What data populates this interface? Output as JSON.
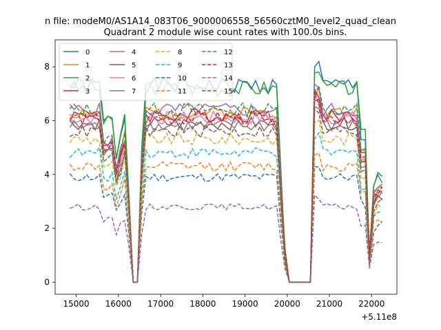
{
  "chart_data": {
    "type": "line",
    "suptitle": "n file: modeM0/AS1A14_083T06_9000006558_56560cztM0_level2_quad_clean",
    "title": "Quadrant 2 module wise count rates with 100.0s bins.",
    "xlabel": "",
    "ylabel": "",
    "offset_label": "+5.11e8",
    "xlim": [
      14500,
      22600
    ],
    "ylim": [
      -0.45,
      9.0
    ],
    "xticks": [
      15000,
      16000,
      17000,
      18000,
      19000,
      20000,
      21000,
      22000
    ],
    "yticks": [
      0,
      2,
      4,
      6,
      8
    ],
    "xtick_labels": [
      "15000",
      "16000",
      "17000",
      "18000",
      "19000",
      "20000",
      "21000",
      "22000"
    ],
    "ytick_labels": [
      "0",
      "2",
      "4",
      "6",
      "8"
    ],
    "legend_position": "upper-left",
    "series": [
      {
        "name": "0",
        "color": "#1f77b4",
        "dash": "solid",
        "level": 7.3,
        "seed": 1
      },
      {
        "name": "1",
        "color": "#ff7f0e",
        "dash": "solid",
        "level": 6.3,
        "seed": 2
      },
      {
        "name": "2",
        "color": "#2ca02c",
        "dash": "solid",
        "level": 7.2,
        "seed": 3
      },
      {
        "name": "3",
        "color": "#d62728",
        "dash": "solid",
        "level": 6.2,
        "seed": 4
      },
      {
        "name": "4",
        "color": "#9467bd",
        "dash": "solid",
        "level": 6.4,
        "seed": 5
      },
      {
        "name": "5",
        "color": "#8c564b",
        "dash": "solid",
        "level": 5.9,
        "seed": 6
      },
      {
        "name": "6",
        "color": "#e377c2",
        "dash": "solid",
        "level": 6.1,
        "seed": 7
      },
      {
        "name": "7",
        "color": "#7f7f7f",
        "dash": "solid",
        "level": 5.8,
        "seed": 8
      },
      {
        "name": "8",
        "color": "#bcbd22",
        "dash": "dashed",
        "level": 5.3,
        "seed": 9
      },
      {
        "name": "9",
        "color": "#17becf",
        "dash": "dashed",
        "level": 4.8,
        "seed": 10
      },
      {
        "name": "10",
        "color": "#1f77b4",
        "dash": "dashed",
        "level": 3.9,
        "seed": 11
      },
      {
        "name": "11",
        "color": "#ff7f0e",
        "dash": "dashed",
        "level": 4.3,
        "seed": 12
      },
      {
        "name": "12",
        "color": "#2ca02c",
        "dash": "dashed",
        "level": 6.4,
        "seed": 13
      },
      {
        "name": "13",
        "color": "#d62728",
        "dash": "dashed",
        "level": 6.1,
        "seed": 14
      },
      {
        "name": "14",
        "color": "#9467bd",
        "dash": "dashed",
        "level": 2.8,
        "seed": 15
      },
      {
        "name": "15",
        "color": "#8c564b",
        "dash": "dashed",
        "level": 5.6,
        "seed": 16
      }
    ]
  }
}
